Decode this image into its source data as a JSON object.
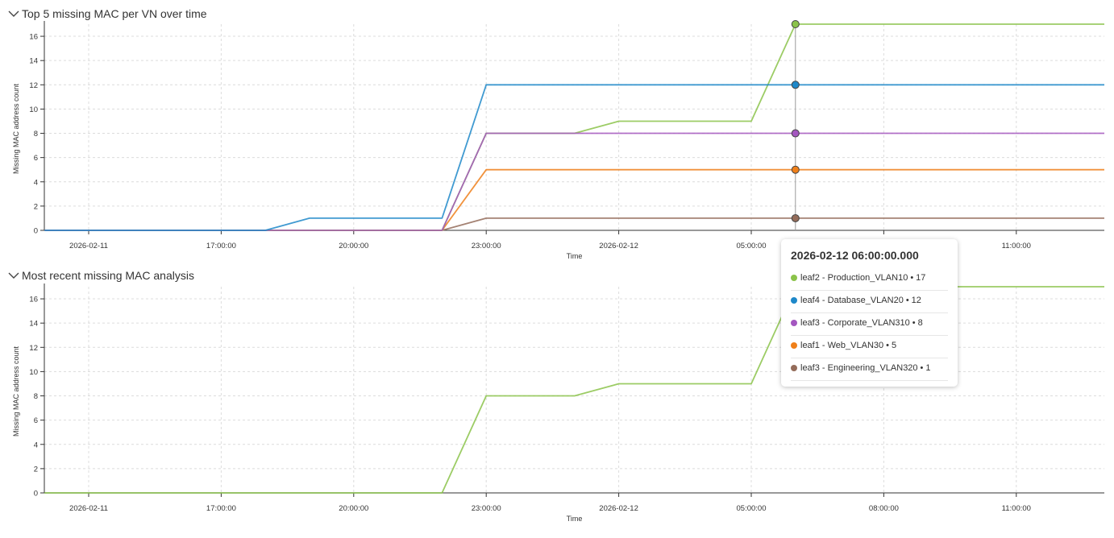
{
  "panels": [
    {
      "title": "Top 5 missing MAC per VN over time"
    },
    {
      "title": "Most recent missing MAC analysis"
    }
  ],
  "tooltip": {
    "title": "2026-02-12 06:00:00.000",
    "rows": [
      {
        "label": "leaf2 - Production_VLAN10",
        "value": "17",
        "color": "#8bc34a"
      },
      {
        "label": "leaf4 - Database_VLAN20",
        "value": "12",
        "color": "#1e88c9"
      },
      {
        "label": "leaf3 - Corporate_VLAN310",
        "value": "8",
        "color": "#a457c0"
      },
      {
        "label": "leaf1 - Web_VLAN30",
        "value": "5",
        "color": "#ef7f1a"
      },
      {
        "label": "leaf3 - Engineering_VLAN320",
        "value": "1",
        "color": "#946c5a"
      }
    ]
  },
  "chart_data": [
    {
      "type": "line",
      "title": "Top 5 missing MAC per VN over time",
      "xlabel": "Time",
      "ylabel": "Missing MAC address count",
      "xlim": [
        "2026-02-11 00:00",
        "2026-02-12 14:00"
      ],
      "ylim": [
        0,
        17
      ],
      "yticks": [
        0,
        2,
        4,
        6,
        8,
        10,
        12,
        14,
        16
      ],
      "xticks": [
        {
          "t": "2026-02-11 14:00",
          "label": "2026-02-11"
        },
        {
          "t": "2026-02-11 17:00",
          "label": "17:00:00"
        },
        {
          "t": "2026-02-11 20:00",
          "label": "20:00:00"
        },
        {
          "t": "2026-02-11 23:00",
          "label": "23:00:00"
        },
        {
          "t": "2026-02-12 02:00",
          "label": "2026-02-12"
        },
        {
          "t": "2026-02-12 05:00",
          "label": "05:00:00"
        },
        {
          "t": "2026-02-12 08:00",
          "label": "08:00:00"
        },
        {
          "t": "2026-02-12 11:00",
          "label": "11:00:00"
        }
      ],
      "grid": true,
      "hover_x": "2026-02-12 06:00",
      "series": [
        {
          "name": "leaf3 - Engineering_VLAN320",
          "color": "#946c5a",
          "points": [
            [
              "2026-02-11 13:00",
              0
            ],
            [
              "2026-02-11 22:00",
              0
            ],
            [
              "2026-02-11 23:00",
              1
            ],
            [
              "2026-02-12 13:24",
              1
            ]
          ]
        },
        {
          "name": "leaf1 - Web_VLAN30",
          "color": "#ef7f1a",
          "points": [
            [
              "2026-02-11 13:00",
              0
            ],
            [
              "2026-02-11 22:00",
              0
            ],
            [
              "2026-02-11 23:00",
              5
            ],
            [
              "2026-02-12 13:24",
              5
            ]
          ]
        },
        {
          "name": "leaf2 - Production_VLAN10",
          "color": "#8bc34a",
          "points": [
            [
              "2026-02-11 13:00",
              0
            ],
            [
              "2026-02-11 22:00",
              0
            ],
            [
              "2026-02-11 23:00",
              8
            ],
            [
              "2026-02-12 01:00",
              8
            ],
            [
              "2026-02-12 02:00",
              9
            ],
            [
              "2026-02-12 05:00",
              9
            ],
            [
              "2026-02-12 06:00",
              17
            ],
            [
              "2026-02-12 13:24",
              17
            ]
          ]
        },
        {
          "name": "leaf3 - Corporate_VLAN310",
          "color": "#a457c0",
          "points": [
            [
              "2026-02-11 13:00",
              0
            ],
            [
              "2026-02-11 22:00",
              0
            ],
            [
              "2026-02-11 23:00",
              8
            ],
            [
              "2026-02-12 13:24",
              8
            ]
          ]
        },
        {
          "name": "leaf4 - Database_VLAN20",
          "color": "#1e88c9",
          "points": [
            [
              "2026-02-11 13:00",
              0
            ],
            [
              "2026-02-11 18:00",
              0
            ],
            [
              "2026-02-11 19:00",
              1
            ],
            [
              "2026-02-11 22:00",
              1
            ],
            [
              "2026-02-11 23:00",
              12
            ],
            [
              "2026-02-12 13:24",
              12
            ]
          ]
        }
      ]
    },
    {
      "type": "line",
      "title": "Most recent missing MAC analysis",
      "xlabel": "Time",
      "ylabel": "Missing MAC address count",
      "xlim": [
        "2026-02-11 00:00",
        "2026-02-12 14:00"
      ],
      "ylim": [
        0,
        17
      ],
      "yticks": [
        0,
        2,
        4,
        6,
        8,
        10,
        12,
        14,
        16
      ],
      "xticks": [
        {
          "t": "2026-02-11 14:00",
          "label": "2026-02-11"
        },
        {
          "t": "2026-02-11 17:00",
          "label": "17:00:00"
        },
        {
          "t": "2026-02-11 20:00",
          "label": "20:00:00"
        },
        {
          "t": "2026-02-11 23:00",
          "label": "23:00:00"
        },
        {
          "t": "2026-02-12 02:00",
          "label": "2026-02-12"
        },
        {
          "t": "2026-02-12 05:00",
          "label": "05:00:00"
        },
        {
          "t": "2026-02-12 08:00",
          "label": "08:00:00"
        },
        {
          "t": "2026-02-12 11:00",
          "label": "11:00:00"
        }
      ],
      "grid": true,
      "series": [
        {
          "name": "leaf2 - Production_VLAN10",
          "color": "#8bc34a",
          "points": [
            [
              "2026-02-11 13:00",
              0
            ],
            [
              "2026-02-11 22:00",
              0
            ],
            [
              "2026-02-11 23:00",
              8
            ],
            [
              "2026-02-12 01:00",
              8
            ],
            [
              "2026-02-12 02:00",
              9
            ],
            [
              "2026-02-12 05:00",
              9
            ],
            [
              "2026-02-12 06:00",
              17
            ],
            [
              "2026-02-12 13:24",
              17
            ]
          ]
        }
      ]
    }
  ]
}
